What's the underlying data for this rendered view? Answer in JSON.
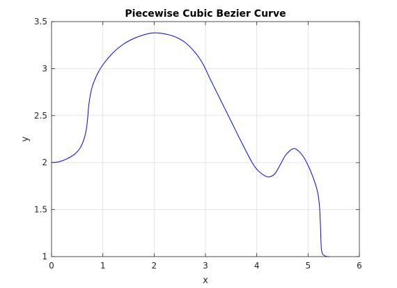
{
  "chart_data": {
    "type": "line",
    "title": "Piecewise Cubic Bezier Curve",
    "xlabel": "x",
    "ylabel": "y",
    "xlim": [
      0,
      6
    ],
    "ylim": [
      1,
      3.5
    ],
    "xticks": [
      0,
      1,
      2,
      3,
      4,
      5,
      6
    ],
    "xtick_labels": [
      "0",
      "1",
      "2",
      "3",
      "4",
      "5",
      "6"
    ],
    "yticks": [
      1,
      1.5,
      2,
      2.5,
      3,
      3.5
    ],
    "ytick_labels": [
      "1",
      "1.5",
      "2",
      "2.5",
      "3",
      "3.5"
    ],
    "grid": true,
    "colors": {
      "line": "#0000ff",
      "grid": "#e0e0e0",
      "axes": "#262626"
    },
    "series": [
      {
        "x": [
          0,
          0.15,
          0.3,
          0.45,
          0.55,
          0.62,
          0.67,
          0.7,
          0.72,
          0.75,
          0.8,
          0.9,
          1.0,
          1.2,
          1.4,
          1.6,
          1.8,
          2.0,
          2.2,
          2.4,
          2.6,
          2.8,
          2.95,
          3.1,
          3.3,
          3.5,
          3.7,
          3.9,
          4.0,
          4.1,
          4.2,
          4.26,
          4.35,
          4.45,
          4.55,
          4.65,
          4.73,
          4.8,
          4.9,
          5.0,
          5.1,
          5.18,
          5.22,
          5.24,
          5.25,
          5.26,
          5.28,
          5.32,
          5.38,
          5.42
        ],
        "y": [
          2.0,
          2.01,
          2.04,
          2.09,
          2.15,
          2.23,
          2.33,
          2.45,
          2.58,
          2.7,
          2.82,
          2.95,
          3.04,
          3.17,
          3.26,
          3.32,
          3.36,
          3.38,
          3.37,
          3.34,
          3.28,
          3.17,
          3.05,
          2.88,
          2.66,
          2.44,
          2.22,
          2.01,
          1.93,
          1.88,
          1.85,
          1.85,
          1.88,
          1.97,
          2.07,
          2.13,
          2.15,
          2.13,
          2.07,
          1.97,
          1.84,
          1.7,
          1.55,
          1.35,
          1.18,
          1.08,
          1.03,
          1.01,
          1.0,
          1.0
        ]
      }
    ]
  }
}
